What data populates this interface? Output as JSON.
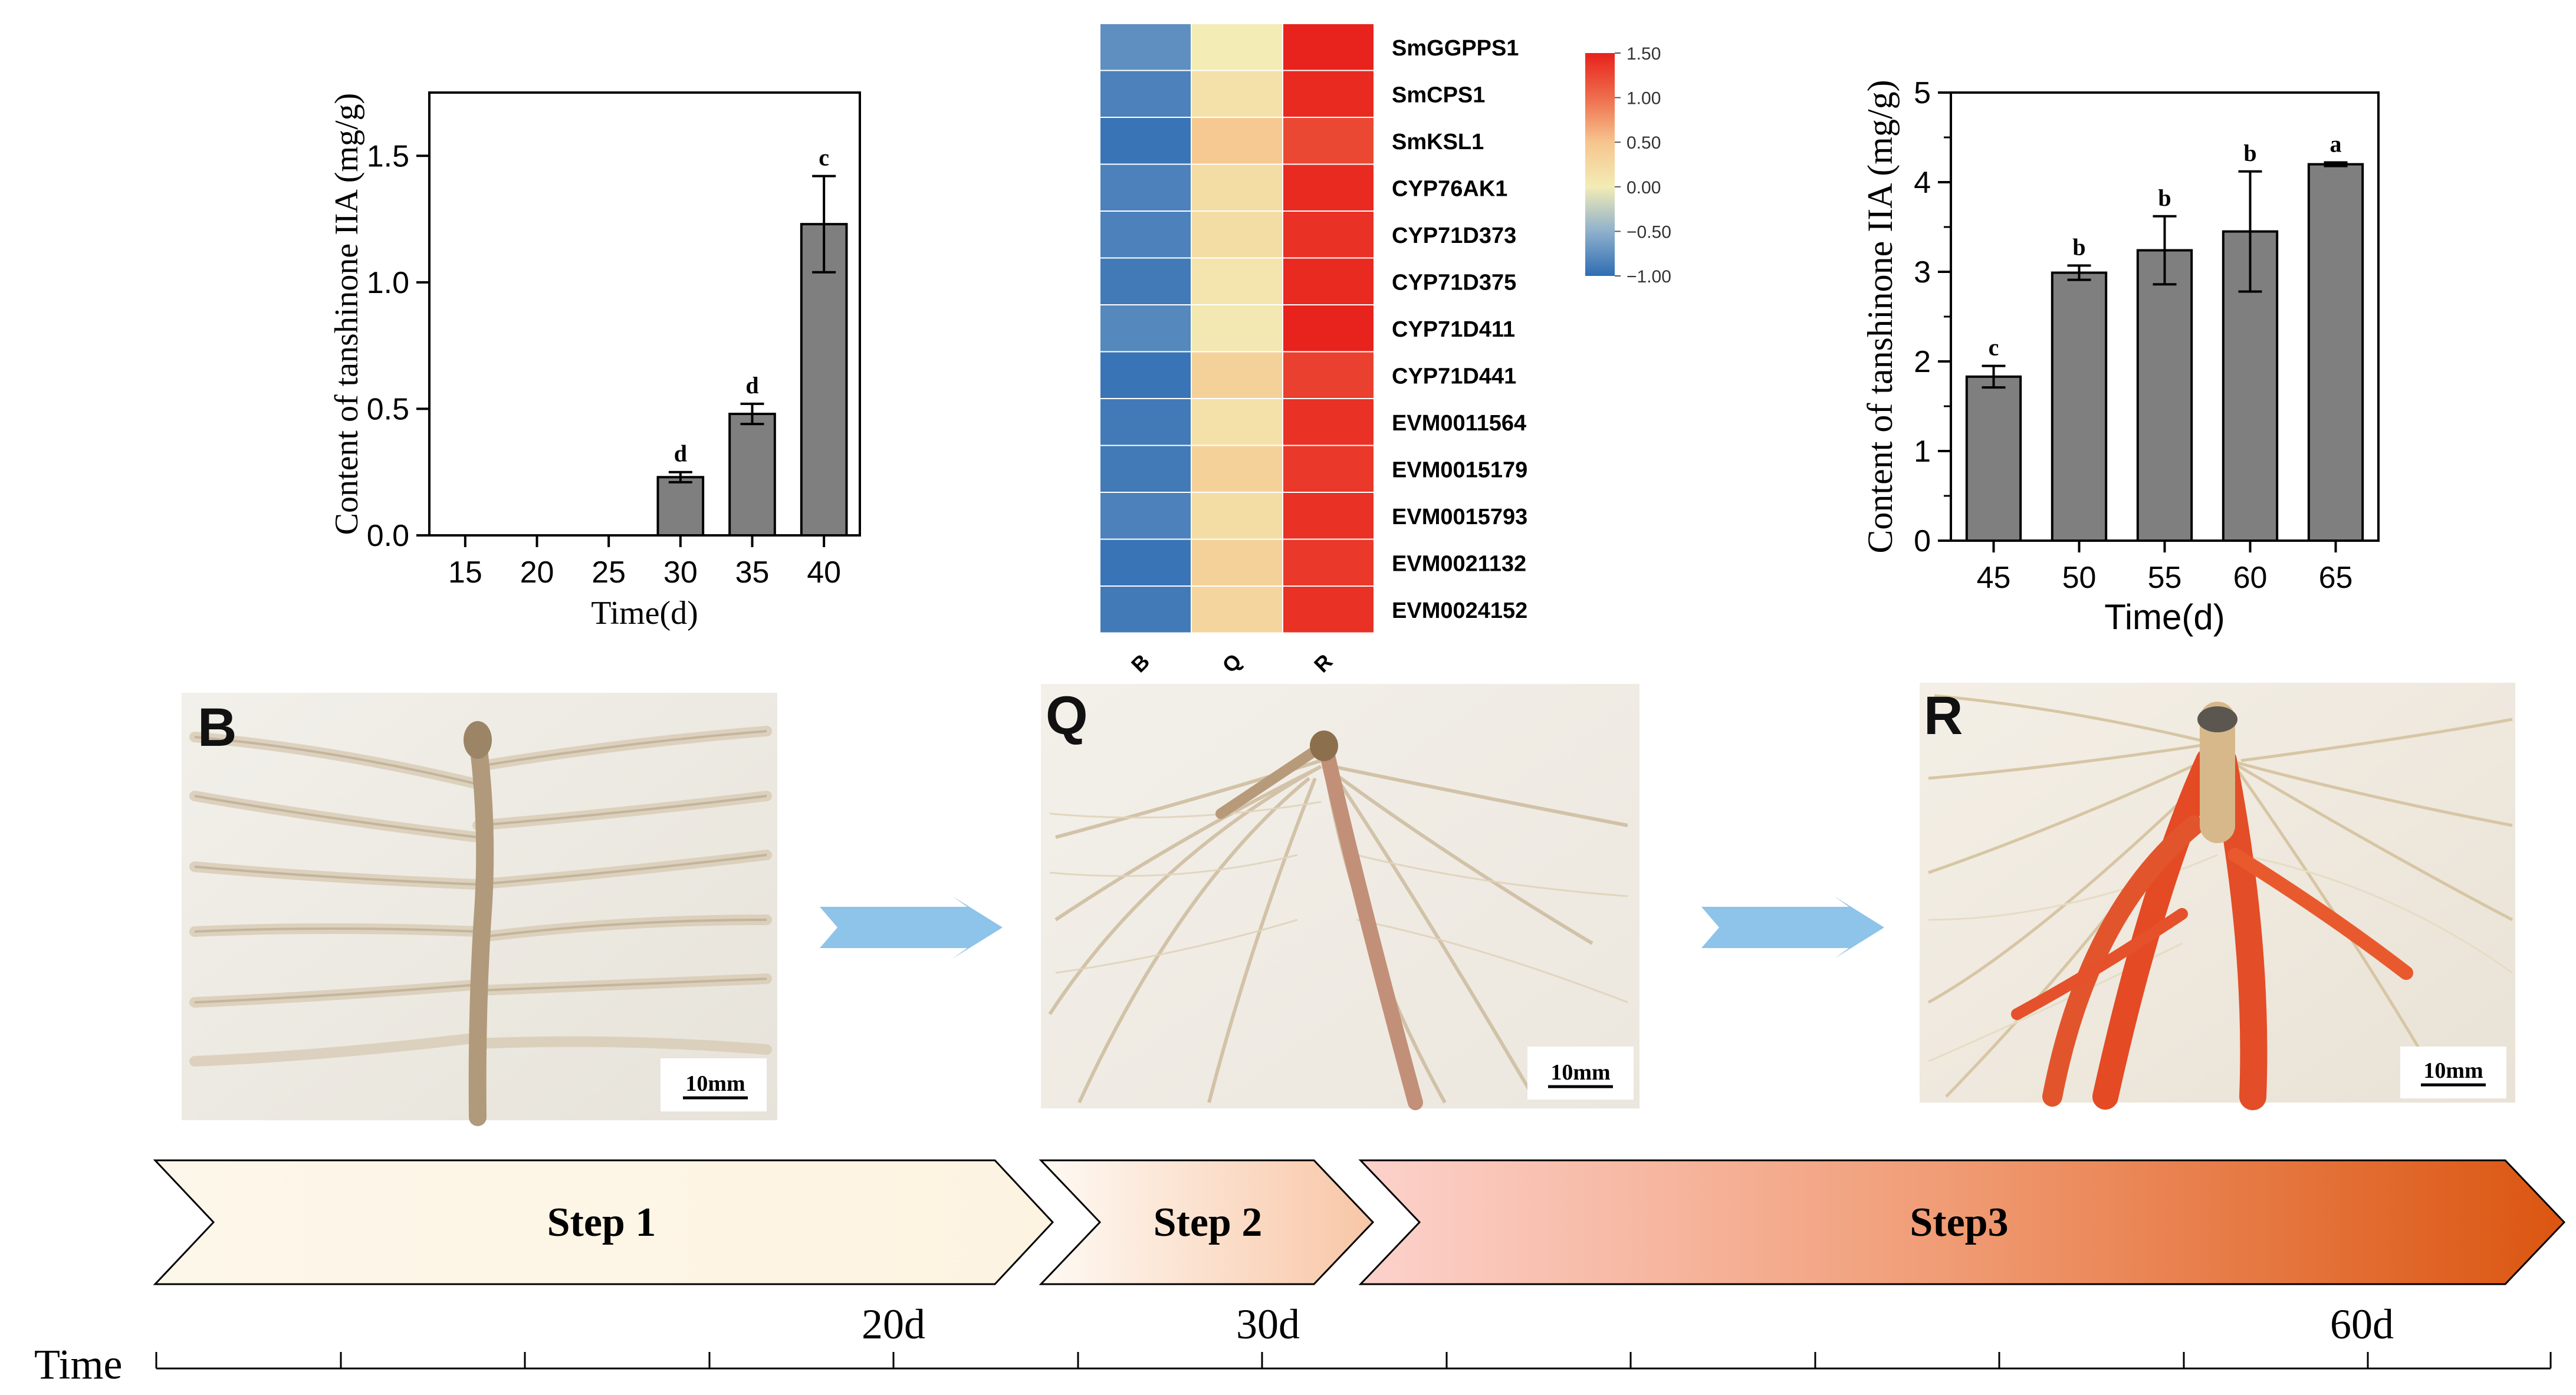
{
  "chart_data": [
    {
      "type": "bar",
      "id": "chart-left",
      "categories": [
        "15",
        "20",
        "25",
        "30",
        "35",
        "40"
      ],
      "values": [
        0,
        0,
        0,
        0.23,
        0.48,
        1.23
      ],
      "errors": [
        0,
        0,
        0,
        0.02,
        0.04,
        0.19
      ],
      "letters": [
        "",
        "",
        "",
        "d",
        "d",
        "c"
      ],
      "title": "",
      "xlabel": "Time(d)",
      "ylabel": "Content of tanshinone IIA (mg/g)",
      "yticks": [
        "0.0",
        "0.5",
        "1.0",
        "1.5"
      ],
      "ylim": [
        0,
        1.75
      ],
      "grid": false
    },
    {
      "type": "heatmap",
      "id": "heatmap",
      "genes": [
        "SmGGPPS1",
        "SmCPS1",
        "SmKSL1",
        "CYP76AK1",
        "CYP71D373",
        "CYP71D375",
        "CYP71D411",
        "CYP71D441",
        "EVM0011564",
        "EVM0015179",
        "EVM0015793",
        "EVM0021132",
        "EVM0024152"
      ],
      "samples": [
        "B",
        "Q",
        "R"
      ],
      "values": [
        [
          -0.75,
          0.0,
          1.5
        ],
        [
          -0.85,
          0.15,
          1.45
        ],
        [
          -0.95,
          0.45,
          1.25
        ],
        [
          -0.85,
          0.2,
          1.45
        ],
        [
          -0.85,
          0.2,
          1.4
        ],
        [
          -0.9,
          0.1,
          1.45
        ],
        [
          -0.8,
          0.05,
          1.5
        ],
        [
          -0.95,
          0.35,
          1.3
        ],
        [
          -0.9,
          0.15,
          1.4
        ],
        [
          -0.9,
          0.35,
          1.35
        ],
        [
          -0.85,
          0.2,
          1.4
        ],
        [
          -0.95,
          0.35,
          1.35
        ],
        [
          -0.9,
          0.3,
          1.4
        ]
      ],
      "colorbar_ticks": [
        "1.50",
        "1.00",
        "0.50",
        "0.00",
        "−0.50",
        "−1.00"
      ],
      "range": [
        -1.0,
        1.5
      ]
    },
    {
      "type": "bar",
      "id": "chart-right",
      "categories": [
        "45",
        "50",
        "55",
        "60",
        "65"
      ],
      "values": [
        1.83,
        2.99,
        3.24,
        3.45,
        4.2
      ],
      "errors": [
        0.12,
        0.08,
        0.38,
        0.67,
        0.02
      ],
      "letters": [
        "c",
        "b",
        "b",
        "b",
        "a"
      ],
      "title": "",
      "xlabel": "Time(d)",
      "ylabel": "Content of tanshinone IIA (mg/g)",
      "yticks": [
        "0",
        "1",
        "2",
        "3",
        "4",
        "5"
      ],
      "ylim": [
        0,
        5
      ],
      "grid": false
    }
  ],
  "photos": [
    {
      "label": "B",
      "scale": "10mm"
    },
    {
      "label": "Q",
      "scale": "10mm"
    },
    {
      "label": "R",
      "scale": "10mm"
    }
  ],
  "steps": [
    {
      "label": "Step 1"
    },
    {
      "label": "Step 2"
    },
    {
      "label": "Step3"
    }
  ],
  "timeline": {
    "label": "Time",
    "marks": [
      "20d",
      "30d",
      "60d"
    ]
  },
  "colors": {
    "bar": "#7f7f7f",
    "arrow": "#8ec3ea",
    "step1": "#fdf6e9",
    "step3_end": "#e05a12",
    "heat_low": "#2f6db3",
    "heat_mid": "#f3ecb5",
    "heat_high": "#e8221c"
  }
}
